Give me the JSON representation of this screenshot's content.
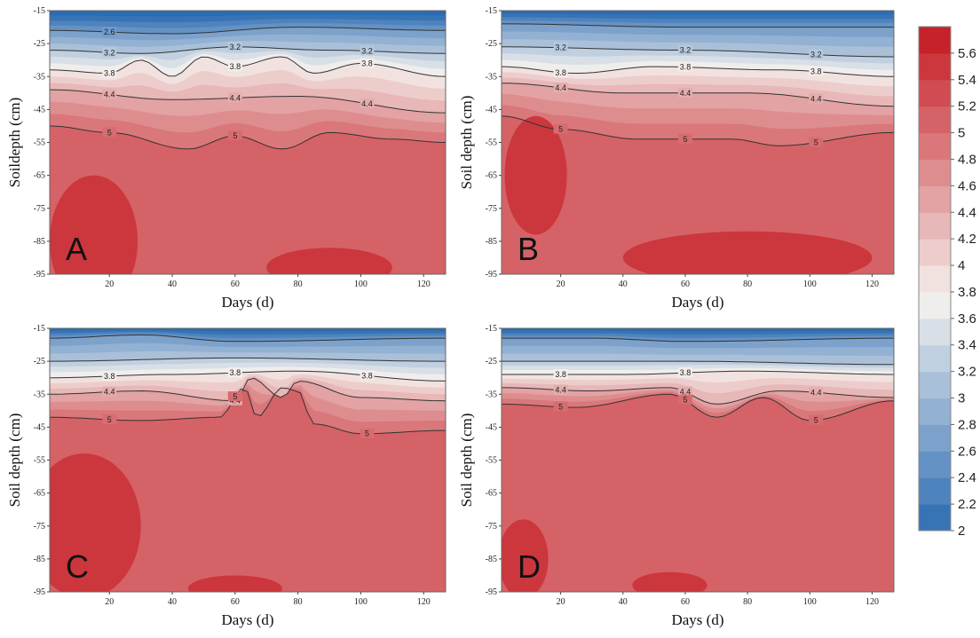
{
  "chart_data": {
    "type": "heatmap",
    "layout": "2x2 panels with shared color bar",
    "x_label": "Days (d)",
    "x_ticks": [
      20,
      40,
      60,
      80,
      100,
      120
    ],
    "x_range": [
      1,
      127
    ],
    "y_ticks": [
      -15,
      -25,
      -35,
      -45,
      -55,
      -65,
      -75,
      -85,
      -95
    ],
    "y_range": [
      -95,
      -15
    ],
    "colorbar": {
      "ticks": [
        5.6,
        5.4,
        5.2,
        5,
        4.8,
        4.6,
        4.4,
        4.2,
        4,
        3.8,
        3.6,
        3.4,
        3.2,
        3,
        2.8,
        2.6,
        2.4,
        2.2,
        2
      ],
      "range": [
        2,
        5.8
      ],
      "scheme": "blue-white-red diverging",
      "low_color": "#2b6cb3",
      "mid_color": "#f5f2ef",
      "high_color": "#c4171f"
    },
    "panels": [
      {
        "label": "A",
        "y_label": "Soildepth (cm)",
        "contour_labels": [
          "2.6",
          "3.2",
          "3.2",
          "3.2",
          "3.8",
          "3.8",
          "3.8",
          "4.4",
          "4.4",
          "4.4",
          "5",
          "5"
        ],
        "contours": [
          {
            "level": 2.6,
            "x": [
              1,
              40,
              80,
              127
            ],
            "depth": [
              -21,
              -22,
              -20,
              -21
            ]
          },
          {
            "level": 3.2,
            "x": [
              1,
              30,
              60,
              90,
              127
            ],
            "depth": [
              -27,
              -28,
              -26,
              -27,
              -28
            ]
          },
          {
            "level": 3.8,
            "x": [
              1,
              20,
              30,
              40,
              50,
              60,
              75,
              85,
              100,
              127
            ],
            "depth": [
              -33,
              -34,
              -30,
              -35,
              -29,
              -32,
              -29,
              -34,
              -31,
              -35
            ]
          },
          {
            "level": 4.4,
            "x": [
              1,
              40,
              80,
              127
            ],
            "depth": [
              -39,
              -42,
              -41,
              -46
            ]
          },
          {
            "level": 5.0,
            "x": [
              1,
              20,
              45,
              60,
              75,
              90,
              110,
              127
            ],
            "depth": [
              -50,
              -52,
              -57,
              -53,
              -57,
              -52,
              -54,
              -55
            ]
          }
        ]
      },
      {
        "label": "B",
        "y_label": "Soil depth (cm)",
        "contour_labels": [
          "3.2",
          "3.2",
          "3.2",
          "3.8",
          "3.8",
          "3.8",
          "4.4",
          "4.4",
          "4.4",
          "5",
          "5",
          "5"
        ],
        "contours": [
          {
            "level": 2.6,
            "x": [
              1,
              60,
              127
            ],
            "depth": [
              -19,
              -20,
              -20
            ]
          },
          {
            "level": 3.2,
            "x": [
              1,
              60,
              127
            ],
            "depth": [
              -26,
              -27,
              -29
            ]
          },
          {
            "level": 3.8,
            "x": [
              1,
              25,
              50,
              90,
              127
            ],
            "depth": [
              -32,
              -34,
              -32,
              -33,
              -35
            ]
          },
          {
            "level": 4.4,
            "x": [
              1,
              40,
              80,
              127
            ],
            "depth": [
              -37,
              -40,
              -40,
              -44
            ]
          },
          {
            "level": 5.0,
            "x": [
              1,
              20,
              45,
              75,
              90,
              127
            ],
            "depth": [
              -47,
              -51,
              -54,
              -54,
              -56,
              -52
            ]
          }
        ]
      },
      {
        "label": "C",
        "y_label": "Soil depth (cm)",
        "contour_labels": [
          "3.8",
          "3.8",
          "3.8",
          "4.4",
          "4.4",
          "5",
          "5",
          "5"
        ],
        "contours": [
          {
            "level": 2.6,
            "x": [
              1,
              30,
              60,
              127
            ],
            "depth": [
              -18,
              -17,
              -19,
              -18
            ]
          },
          {
            "level": 3.2,
            "x": [
              1,
              60,
              127
            ],
            "depth": [
              -25,
              -24,
              -25
            ]
          },
          {
            "level": 3.8,
            "x": [
              1,
              40,
              80,
              127
            ],
            "depth": [
              -30,
              -29,
              -28,
              -31
            ]
          },
          {
            "level": 4.4,
            "x": [
              1,
              30,
              60,
              65,
              75,
              80,
              100,
              127
            ],
            "depth": [
              -35,
              -34,
              -37,
              -30,
              -36,
              -31,
              -36,
              -37
            ]
          },
          {
            "level": 5.0,
            "x": [
              1,
              30,
              55,
              63,
              67,
              75,
              80,
              85,
              100,
              127
            ],
            "depth": [
              -42,
              -43,
              -42,
              -33,
              -42,
              -33,
              -34,
              -44,
              -47,
              -46
            ]
          }
        ]
      },
      {
        "label": "D",
        "y_label": "Soil depth (cm)",
        "contour_labels": [
          "3.8",
          "3.8",
          "4.4",
          "4.4",
          "4.4",
          "5",
          "5",
          "5"
        ],
        "contours": [
          {
            "level": 2.6,
            "x": [
              1,
              30,
              60,
              127
            ],
            "depth": [
              -18,
              -18,
              -19,
              -18
            ]
          },
          {
            "level": 3.2,
            "x": [
              1,
              60,
              127
            ],
            "depth": [
              -25,
              -25,
              -26
            ]
          },
          {
            "level": 3.8,
            "x": [
              1,
              40,
              80,
              127
            ],
            "depth": [
              -29,
              -29,
              -28,
              -29
            ]
          },
          {
            "level": 4.4,
            "x": [
              1,
              30,
              55,
              70,
              90,
              127
            ],
            "depth": [
              -33,
              -34,
              -33,
              -38,
              -34,
              -36
            ]
          },
          {
            "level": 5.0,
            "x": [
              1,
              25,
              55,
              70,
              85,
              100,
              127
            ],
            "depth": [
              -38,
              -39,
              -35,
              -42,
              -36,
              -43,
              -37
            ]
          }
        ]
      }
    ]
  }
}
